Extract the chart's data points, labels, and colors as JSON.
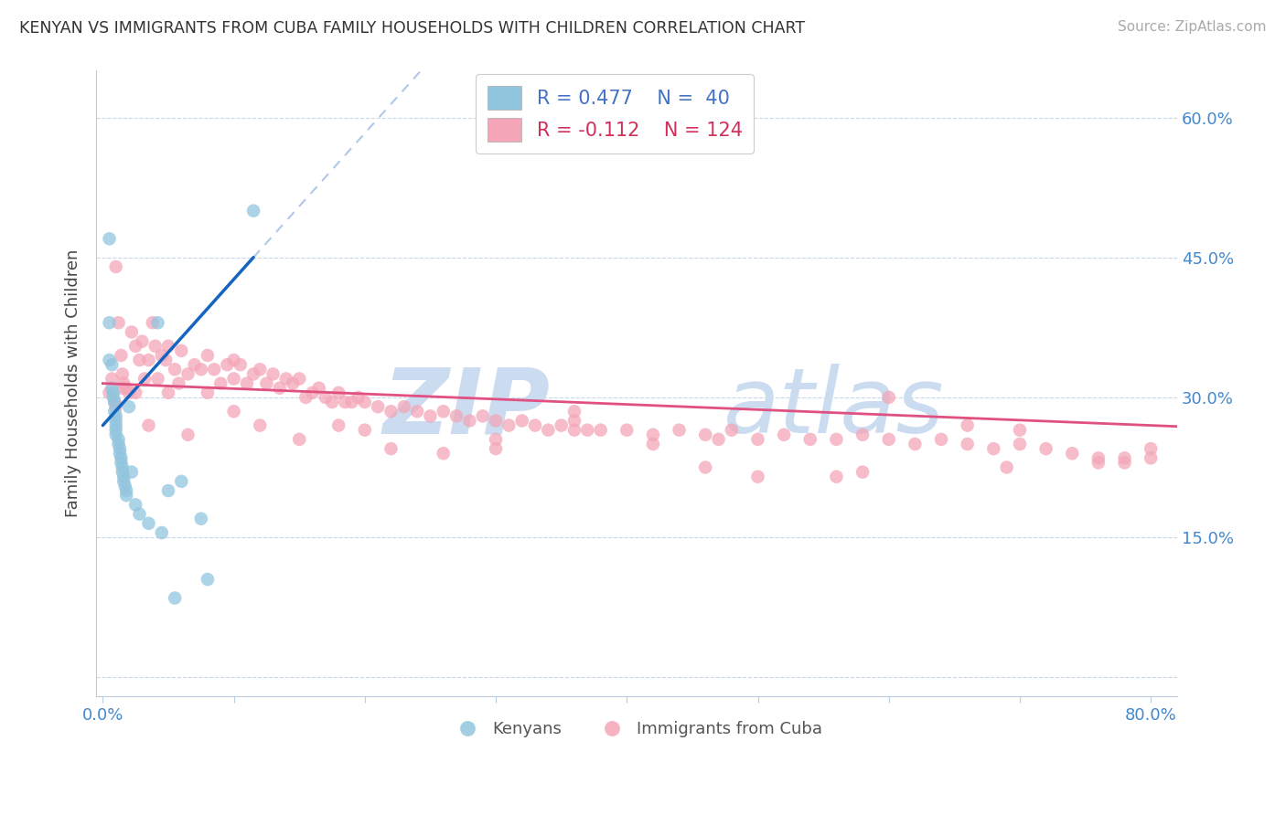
{
  "title": "KENYAN VS IMMIGRANTS FROM CUBA FAMILY HOUSEHOLDS WITH CHILDREN CORRELATION CHART",
  "source": "Source: ZipAtlas.com",
  "ylabel": "Family Households with Children",
  "xlim": [
    -0.005,
    0.82
  ],
  "ylim": [
    -0.02,
    0.65
  ],
  "x_ticks": [
    0.0,
    0.1,
    0.2,
    0.3,
    0.4,
    0.5,
    0.6,
    0.7,
    0.8
  ],
  "x_tick_labels": [
    "0.0%",
    "",
    "",
    "",
    "",
    "",
    "",
    "",
    "80.0%"
  ],
  "y_ticks": [
    0.0,
    0.15,
    0.3,
    0.45,
    0.6
  ],
  "y_right_labels": [
    "",
    "15.0%",
    "30.0%",
    "45.0%",
    "60.0%"
  ],
  "color_blue": "#92c5de",
  "color_pink": "#f4a6b8",
  "trend_blue": "#1565c0",
  "trend_pink": "#e05080",
  "trend_dash_color": "#b0c8e8",
  "watermark_color": "#ccdcf0",
  "legend_entries": [
    "Kenyans",
    "Immigrants from Cuba"
  ],
  "kenyan_x": [
    0.005,
    0.005,
    0.005,
    0.007,
    0.007,
    0.008,
    0.008,
    0.009,
    0.009,
    0.01,
    0.01,
    0.01,
    0.01,
    0.01,
    0.012,
    0.012,
    0.013,
    0.013,
    0.014,
    0.014,
    0.015,
    0.015,
    0.016,
    0.016,
    0.017,
    0.018,
    0.018,
    0.02,
    0.022,
    0.025,
    0.028,
    0.035,
    0.042,
    0.045,
    0.05,
    0.055,
    0.06,
    0.075,
    0.08,
    0.115
  ],
  "kenyan_y": [
    0.47,
    0.38,
    0.34,
    0.335,
    0.31,
    0.305,
    0.3,
    0.295,
    0.285,
    0.28,
    0.275,
    0.27,
    0.265,
    0.26,
    0.255,
    0.25,
    0.245,
    0.24,
    0.235,
    0.23,
    0.225,
    0.22,
    0.215,
    0.21,
    0.205,
    0.2,
    0.195,
    0.29,
    0.22,
    0.185,
    0.175,
    0.165,
    0.38,
    0.155,
    0.2,
    0.085,
    0.21,
    0.17,
    0.105,
    0.5
  ],
  "cuba_x": [
    0.005,
    0.007,
    0.009,
    0.01,
    0.012,
    0.014,
    0.015,
    0.016,
    0.018,
    0.02,
    0.022,
    0.025,
    0.028,
    0.03,
    0.032,
    0.035,
    0.038,
    0.04,
    0.042,
    0.045,
    0.048,
    0.05,
    0.055,
    0.058,
    0.06,
    0.065,
    0.07,
    0.075,
    0.08,
    0.085,
    0.09,
    0.095,
    0.1,
    0.105,
    0.11,
    0.115,
    0.12,
    0.125,
    0.13,
    0.135,
    0.14,
    0.145,
    0.15,
    0.155,
    0.16,
    0.165,
    0.17,
    0.175,
    0.18,
    0.185,
    0.19,
    0.195,
    0.2,
    0.21,
    0.22,
    0.23,
    0.24,
    0.25,
    0.26,
    0.27,
    0.28,
    0.29,
    0.3,
    0.31,
    0.32,
    0.33,
    0.34,
    0.35,
    0.36,
    0.37,
    0.38,
    0.4,
    0.42,
    0.44,
    0.46,
    0.48,
    0.5,
    0.52,
    0.54,
    0.56,
    0.58,
    0.6,
    0.62,
    0.64,
    0.66,
    0.68,
    0.7,
    0.72,
    0.74,
    0.76,
    0.78,
    0.8,
    0.01,
    0.015,
    0.025,
    0.035,
    0.05,
    0.065,
    0.08,
    0.1,
    0.12,
    0.15,
    0.18,
    0.22,
    0.26,
    0.3,
    0.36,
    0.42,
    0.5,
    0.6,
    0.7,
    0.78,
    0.1,
    0.2,
    0.3,
    0.46,
    0.56,
    0.66,
    0.76,
    0.8,
    0.36,
    0.47,
    0.58,
    0.69
  ],
  "cuba_y": [
    0.305,
    0.32,
    0.295,
    0.44,
    0.38,
    0.345,
    0.325,
    0.315,
    0.31,
    0.305,
    0.37,
    0.355,
    0.34,
    0.36,
    0.32,
    0.34,
    0.38,
    0.355,
    0.32,
    0.345,
    0.34,
    0.355,
    0.33,
    0.315,
    0.35,
    0.325,
    0.335,
    0.33,
    0.345,
    0.33,
    0.315,
    0.335,
    0.32,
    0.335,
    0.315,
    0.325,
    0.33,
    0.315,
    0.325,
    0.31,
    0.32,
    0.315,
    0.32,
    0.3,
    0.305,
    0.31,
    0.3,
    0.295,
    0.305,
    0.295,
    0.295,
    0.3,
    0.295,
    0.29,
    0.285,
    0.29,
    0.285,
    0.28,
    0.285,
    0.28,
    0.275,
    0.28,
    0.275,
    0.27,
    0.275,
    0.27,
    0.265,
    0.27,
    0.275,
    0.265,
    0.265,
    0.265,
    0.26,
    0.265,
    0.26,
    0.265,
    0.255,
    0.26,
    0.255,
    0.255,
    0.26,
    0.255,
    0.25,
    0.255,
    0.25,
    0.245,
    0.25,
    0.245,
    0.24,
    0.235,
    0.23,
    0.235,
    0.29,
    0.31,
    0.305,
    0.27,
    0.305,
    0.26,
    0.305,
    0.285,
    0.27,
    0.255,
    0.27,
    0.245,
    0.24,
    0.245,
    0.265,
    0.25,
    0.215,
    0.3,
    0.265,
    0.235,
    0.34,
    0.265,
    0.255,
    0.225,
    0.215,
    0.27,
    0.23,
    0.245,
    0.285,
    0.255,
    0.22,
    0.225
  ]
}
